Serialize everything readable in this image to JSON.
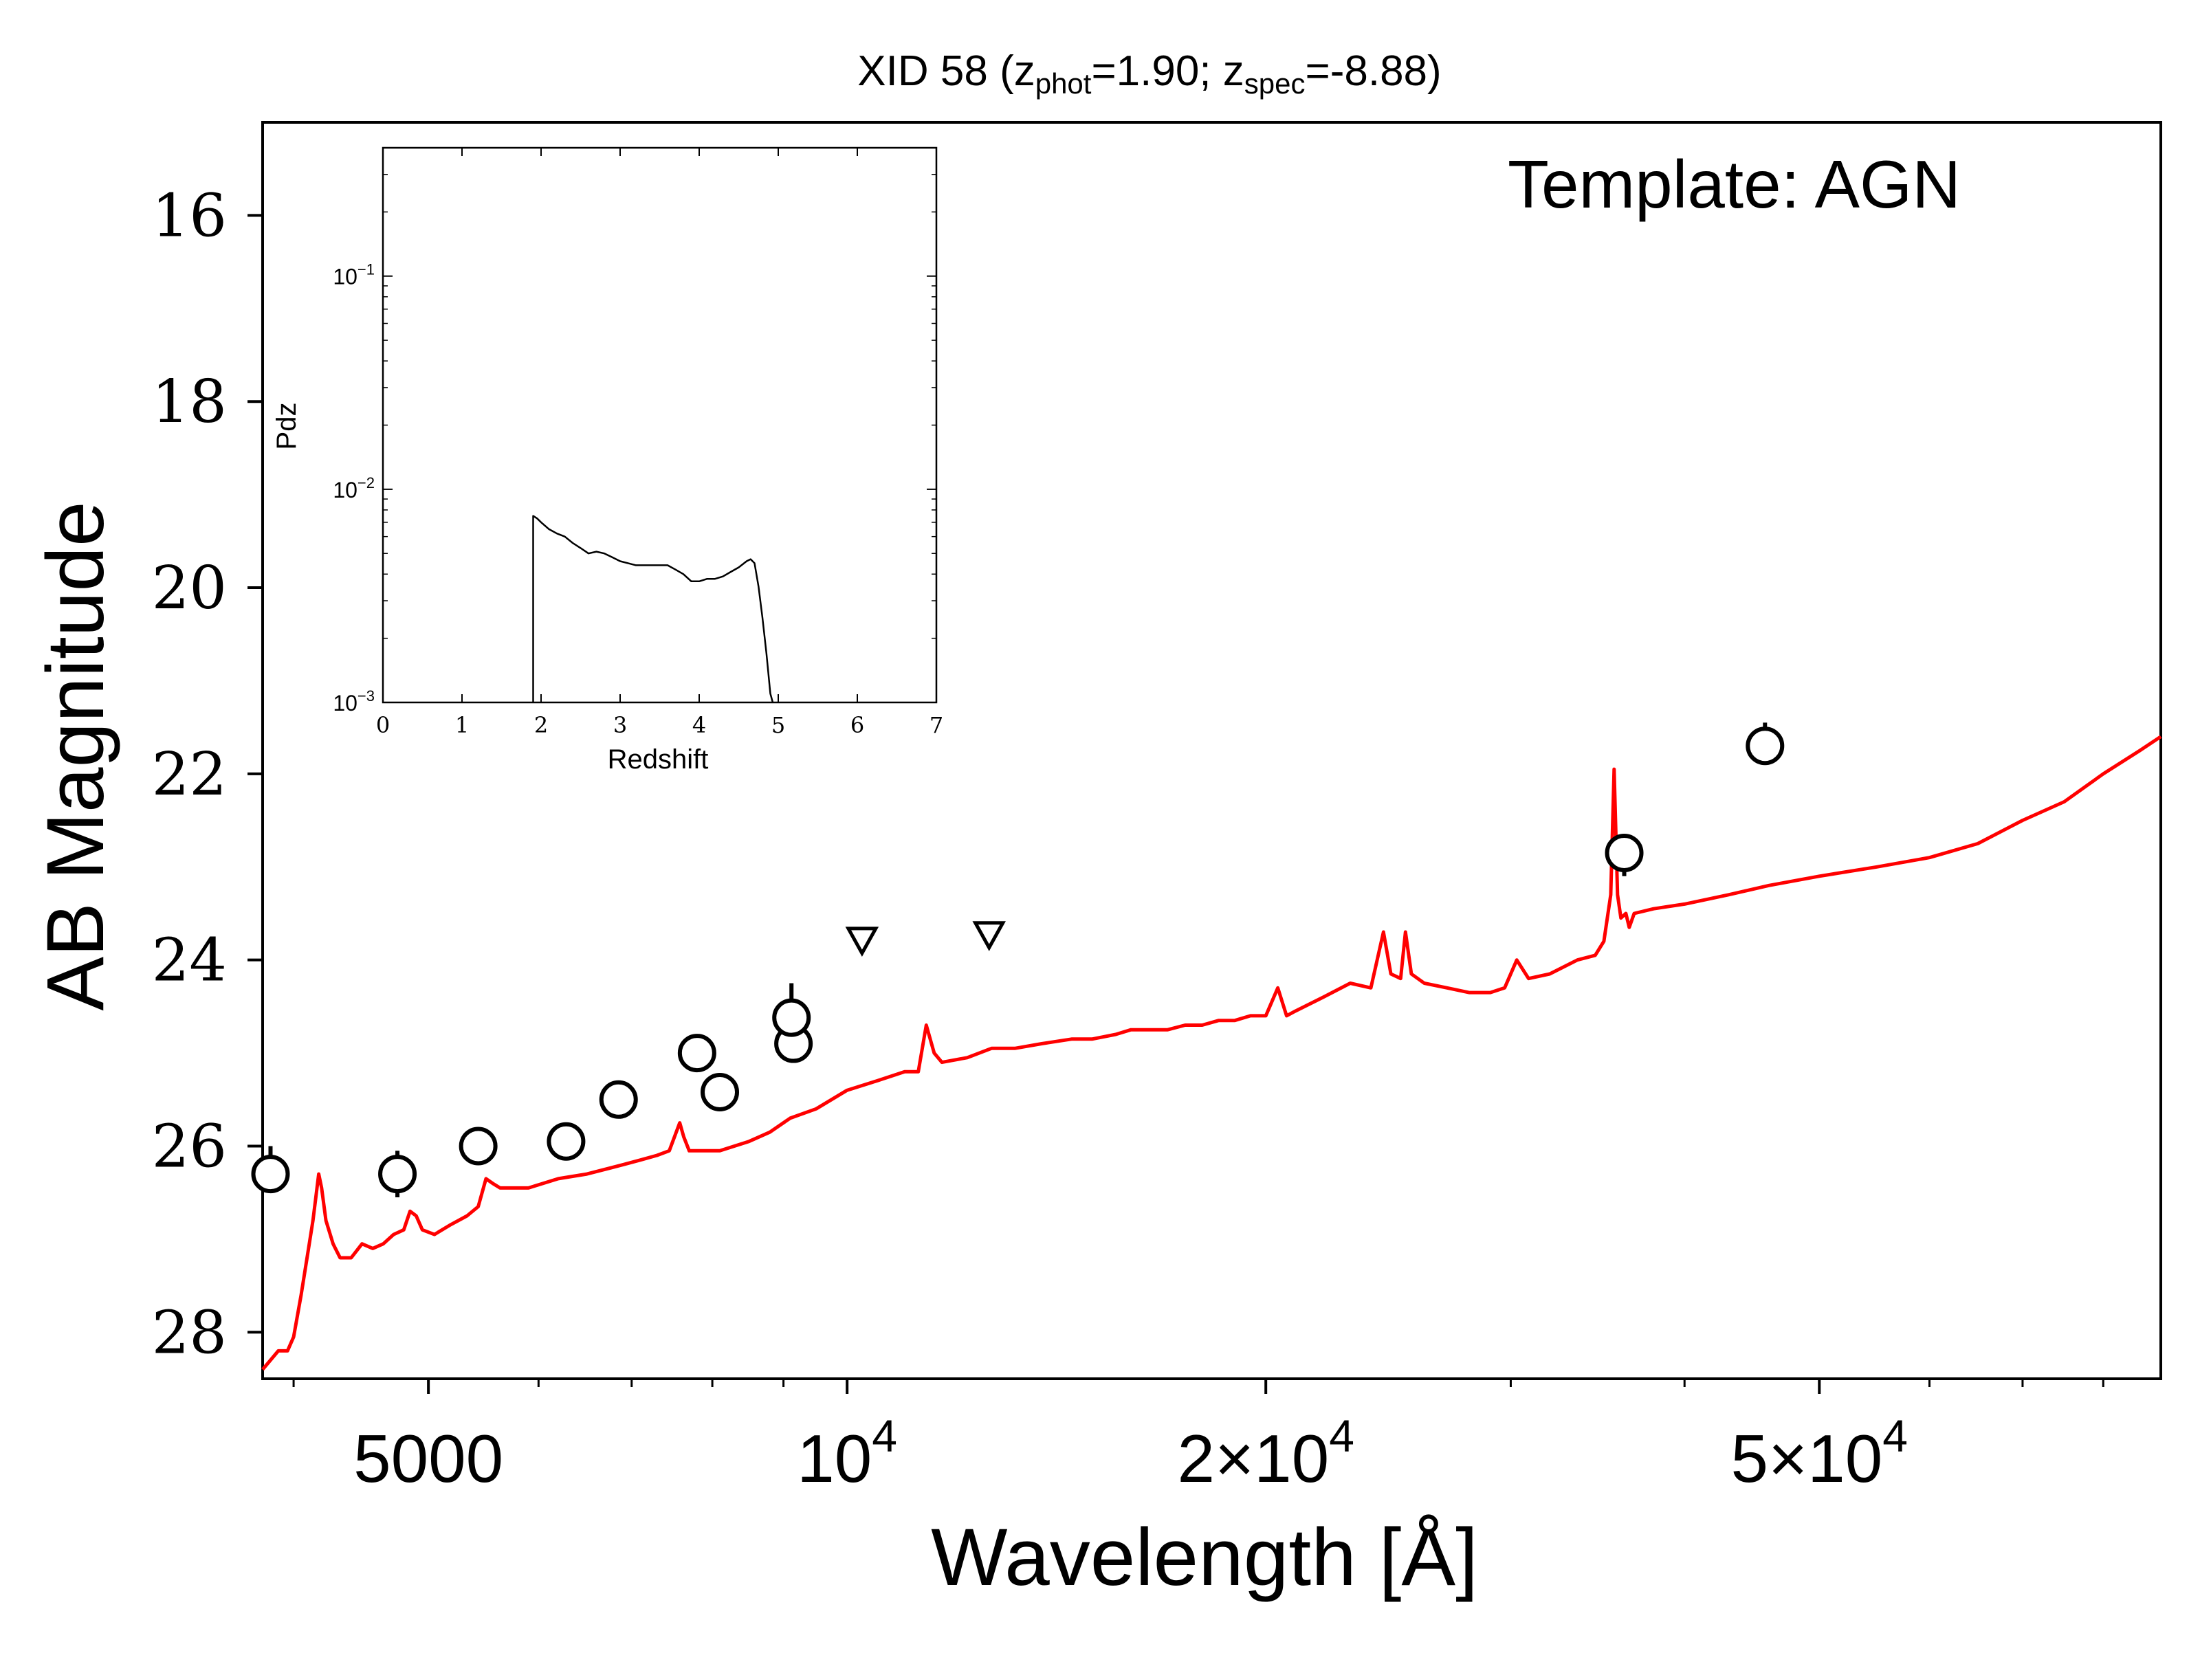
{
  "chart_data": [
    {
      "type": "scatter",
      "title": {
        "prefix": "XID 58 (z",
        "phot_sub": "phot",
        "phot_val": "=1.90; z",
        "spec_sub": "spec",
        "spec_val": "=-8.88)"
      },
      "xlabel": "Wavelength [Å]",
      "ylabel": "AB Magnitude",
      "annotation": "Template: AGN",
      "x_scale": "log",
      "xlim": [
        3800,
        88000
      ],
      "ylim": [
        28.5,
        15.0
      ],
      "x_ticks": [
        {
          "value": 5000,
          "label": "5000"
        },
        {
          "value": 10000,
          "label": "10",
          "sup": "4"
        },
        {
          "value": 20000,
          "label": "2×10",
          "sup": "4"
        },
        {
          "value": 50000,
          "label": "5×10",
          "sup": "4"
        }
      ],
      "y_ticks": [
        16,
        18,
        20,
        22,
        24,
        26,
        28
      ],
      "colors": {
        "template": "#ff0000",
        "points": "#000000",
        "axes": "#000000"
      },
      "series": [
        {
          "kind": "line",
          "points": [
            [
              3800,
              28.4
            ],
            [
              3850,
              28.3
            ],
            [
              3900,
              28.2
            ],
            [
              3960,
              28.2
            ],
            [
              4000,
              28.05
            ],
            [
              4050,
              27.6
            ],
            [
              4100,
              27.1
            ],
            [
              4130,
              26.8
            ],
            [
              4150,
              26.55
            ],
            [
              4170,
              26.3
            ],
            [
              4190,
              26.45
            ],
            [
              4220,
              26.8
            ],
            [
              4270,
              27.05
            ],
            [
              4320,
              27.2
            ],
            [
              4400,
              27.2
            ],
            [
              4480,
              27.05
            ],
            [
              4560,
              27.1
            ],
            [
              4640,
              27.05
            ],
            [
              4720,
              26.95
            ],
            [
              4800,
              26.9
            ],
            [
              4850,
              26.7
            ],
            [
              4900,
              26.75
            ],
            [
              4950,
              26.9
            ],
            [
              5050,
              26.95
            ],
            [
              5180,
              26.85
            ],
            [
              5330,
              26.75
            ],
            [
              5430,
              26.65
            ],
            [
              5500,
              26.35
            ],
            [
              5560,
              26.4
            ],
            [
              5630,
              26.45
            ],
            [
              5900,
              26.45
            ],
            [
              6200,
              26.35
            ],
            [
              6500,
              26.3
            ],
            [
              6900,
              26.2
            ],
            [
              7100,
              26.15
            ],
            [
              7300,
              26.1
            ],
            [
              7450,
              26.05
            ],
            [
              7580,
              25.75
            ],
            [
              7630,
              25.9
            ],
            [
              7700,
              26.05
            ],
            [
              8100,
              26.05
            ],
            [
              8500,
              25.95
            ],
            [
              8800,
              25.85
            ],
            [
              9100,
              25.7
            ],
            [
              9500,
              25.6
            ],
            [
              10000,
              25.4
            ],
            [
              10500,
              25.3
            ],
            [
              11000,
              25.2
            ],
            [
              11250,
              25.2
            ],
            [
              11400,
              24.7
            ],
            [
              11550,
              25.0
            ],
            [
              11700,
              25.1
            ],
            [
              12200,
              25.05
            ],
            [
              12700,
              24.95
            ],
            [
              13200,
              24.95
            ],
            [
              13800,
              24.9
            ],
            [
              14500,
              24.85
            ],
            [
              15000,
              24.85
            ],
            [
              15600,
              24.8
            ],
            [
              16000,
              24.75
            ],
            [
              16500,
              24.75
            ],
            [
              17000,
              24.75
            ],
            [
              17500,
              24.7
            ],
            [
              18000,
              24.7
            ],
            [
              18500,
              24.65
            ],
            [
              19000,
              24.65
            ],
            [
              19500,
              24.6
            ],
            [
              20000,
              24.6
            ],
            [
              20400,
              24.3
            ],
            [
              20700,
              24.6
            ],
            [
              21000,
              24.55
            ],
            [
              22000,
              24.4
            ],
            [
              23000,
              24.25
            ],
            [
              23800,
              24.3
            ],
            [
              24300,
              23.7
            ],
            [
              24600,
              24.15
            ],
            [
              25000,
              24.2
            ],
            [
              25200,
              23.7
            ],
            [
              25450,
              24.15
            ],
            [
              26000,
              24.25
            ],
            [
              27000,
              24.3
            ],
            [
              28000,
              24.35
            ],
            [
              29000,
              24.35
            ],
            [
              29700,
              24.3
            ],
            [
              30300,
              24.0
            ],
            [
              30900,
              24.2
            ],
            [
              32000,
              24.15
            ],
            [
              33500,
              24.0
            ],
            [
              34500,
              23.95
            ],
            [
              35000,
              23.8
            ],
            [
              35400,
              23.3
            ],
            [
              35600,
              21.95
            ],
            [
              35800,
              23.3
            ],
            [
              36000,
              23.55
            ],
            [
              36300,
              23.5
            ],
            [
              36500,
              23.65
            ],
            [
              36800,
              23.5
            ],
            [
              38000,
              23.45
            ],
            [
              40000,
              23.4
            ],
            [
              43000,
              23.3
            ],
            [
              46000,
              23.2
            ],
            [
              50000,
              23.1
            ],
            [
              55000,
              23.0
            ],
            [
              60000,
              22.9
            ],
            [
              65000,
              22.75
            ],
            [
              70000,
              22.5
            ],
            [
              75000,
              22.3
            ],
            [
              80000,
              22.0
            ],
            [
              85000,
              21.75
            ],
            [
              88000,
              21.6
            ]
          ]
        }
      ],
      "detections": [
        {
          "x": 3850,
          "y": 26.3,
          "err_low": 26.0,
          "err_high": 26.3
        },
        {
          "x": 4750,
          "y": 26.3,
          "err_low": 26.05,
          "err_high": 26.55
        },
        {
          "x": 5430,
          "y": 26.0,
          "err_low": 26.0,
          "err_high": 26.0
        },
        {
          "x": 6280,
          "y": 25.95,
          "err_low": 25.95,
          "err_high": 25.95
        },
        {
          "x": 6850,
          "y": 25.5,
          "err_low": 25.5,
          "err_high": 25.5
        },
        {
          "x": 7800,
          "y": 25.0,
          "err_low": 25.0,
          "err_high": 25.0
        },
        {
          "x": 8100,
          "y": 25.42,
          "err_low": 25.42,
          "err_high": 25.42
        },
        {
          "x": 9150,
          "y": 24.9,
          "err_low": 24.9,
          "err_high": 24.9
        },
        {
          "x": 9120,
          "y": 24.62,
          "err_low": 24.25,
          "err_high": 24.62
        },
        {
          "x": 36200,
          "y": 22.85,
          "err_low": 22.85,
          "err_high": 23.1
        },
        {
          "x": 45700,
          "y": 21.7,
          "err_low": 21.45,
          "err_high": 21.7
        }
      ],
      "upper_limits": [
        {
          "x": 10250,
          "y": 23.78
        },
        {
          "x": 12650,
          "y": 23.72
        }
      ]
    },
    {
      "type": "line",
      "xlabel": "Redshift",
      "ylabel": "Pdz",
      "y_scale": "log",
      "xlim": [
        0,
        7
      ],
      "ylim": [
        0.001,
        0.4
      ],
      "x_ticks": [
        "0",
        "1",
        "2",
        "3",
        "4",
        "5",
        "6",
        "7"
      ],
      "y_ticks": [
        {
          "value": 0.1,
          "base": "10",
          "exp": "−1"
        },
        {
          "value": 0.01,
          "base": "10",
          "exp": "−2"
        },
        {
          "value": 0.001,
          "base": "10",
          "exp": "−3"
        }
      ],
      "series": [
        {
          "points": [
            [
              1.9,
              0.001
            ],
            [
              1.9,
              0.0075
            ],
            [
              1.95,
              0.0073
            ],
            [
              2.0,
              0.007
            ],
            [
              2.1,
              0.0065
            ],
            [
              2.2,
              0.0062
            ],
            [
              2.3,
              0.006
            ],
            [
              2.4,
              0.0056
            ],
            [
              2.5,
              0.0053
            ],
            [
              2.6,
              0.005
            ],
            [
              2.7,
              0.0051
            ],
            [
              2.8,
              0.005
            ],
            [
              2.9,
              0.0048
            ],
            [
              3.0,
              0.0046
            ],
            [
              3.1,
              0.0045
            ],
            [
              3.2,
              0.0044
            ],
            [
              3.4,
              0.0044
            ],
            [
              3.6,
              0.0044
            ],
            [
              3.7,
              0.0042
            ],
            [
              3.8,
              0.004
            ],
            [
              3.9,
              0.0037
            ],
            [
              4.0,
              0.0037
            ],
            [
              4.1,
              0.0038
            ],
            [
              4.2,
              0.0038
            ],
            [
              4.3,
              0.0039
            ],
            [
              4.4,
              0.0041
            ],
            [
              4.5,
              0.0043
            ],
            [
              4.6,
              0.0046
            ],
            [
              4.65,
              0.0047
            ],
            [
              4.7,
              0.0045
            ],
            [
              4.75,
              0.0035
            ],
            [
              4.8,
              0.0025
            ],
            [
              4.85,
              0.0017
            ],
            [
              4.9,
              0.0011
            ],
            [
              4.93,
              0.001
            ]
          ]
        }
      ]
    }
  ]
}
